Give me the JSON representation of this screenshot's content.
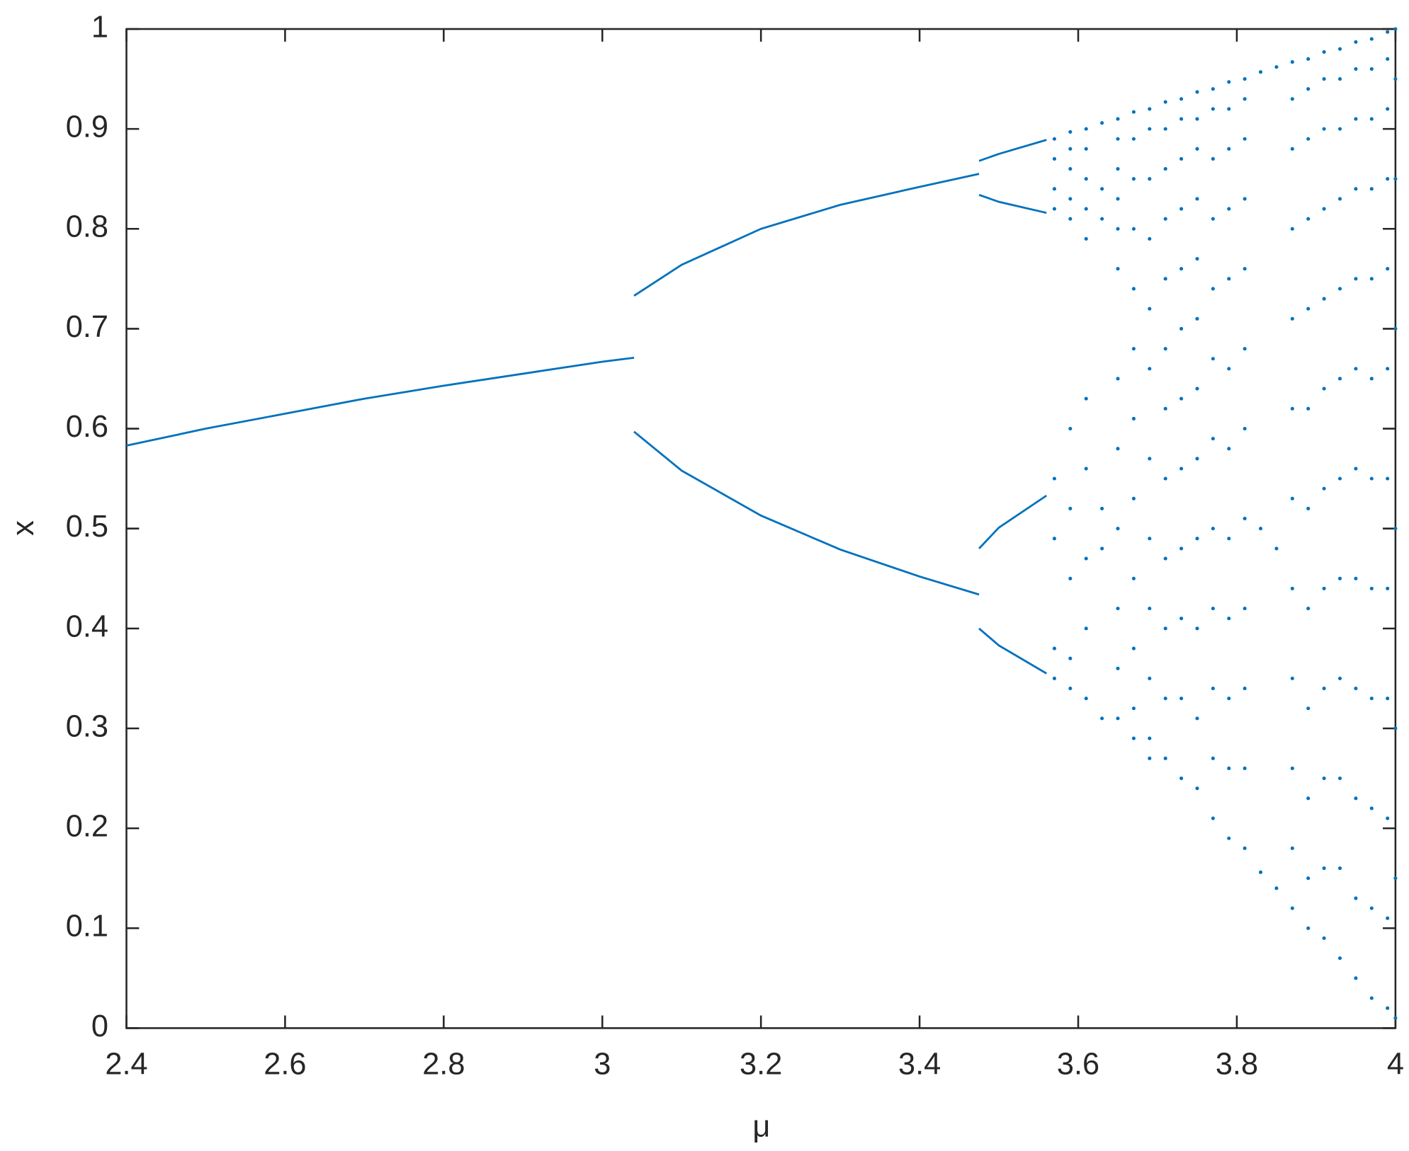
{
  "chart_data": {
    "type": "scatter",
    "xlabel": "μ",
    "ylabel": "x",
    "color": "#0072bd",
    "xlim": [
      2.4,
      4
    ],
    "xticks": [
      2.4,
      2.6,
      2.8,
      3,
      3.2,
      3.4,
      3.6,
      3.8,
      4
    ],
    "ylim": [
      0,
      1
    ],
    "yticks": [
      0,
      0.1,
      0.2,
      0.3,
      0.4,
      0.5,
      0.6,
      0.7,
      0.8,
      0.9,
      1
    ],
    "series": [
      {
        "x": [
          2.4,
          2.5,
          2.6,
          2.7,
          2.8,
          2.9,
          3.0,
          3.04
        ],
        "values": [
          0.583,
          0.6,
          0.615,
          0.63,
          0.643,
          0.655,
          0.667,
          0.671
        ]
      },
      {
        "x": [
          3.04,
          3.1,
          3.2,
          3.3,
          3.4,
          3.475
        ],
        "values": [
          0.733,
          0.764,
          0.8,
          0.824,
          0.842,
          0.855
        ]
      },
      {
        "x": [
          3.04,
          3.1,
          3.2,
          3.3,
          3.4,
          3.475
        ],
        "values": [
          0.597,
          0.558,
          0.513,
          0.479,
          0.452,
          0.434
        ]
      },
      {
        "x": [
          3.475,
          3.5,
          3.56
        ],
        "values": [
          0.868,
          0.875,
          0.889
        ]
      },
      {
        "x": [
          3.475,
          3.5,
          3.56
        ],
        "values": [
          0.834,
          0.827,
          0.816
        ]
      },
      {
        "x": [
          3.475,
          3.5,
          3.56
        ],
        "values": [
          0.48,
          0.501,
          0.533
        ]
      },
      {
        "x": [
          3.475,
          3.5,
          3.56
        ],
        "values": [
          0.4,
          0.383,
          0.355
        ]
      },
      {
        "mu": 3.57,
        "values": [
          0.89,
          0.87,
          0.84,
          0.82,
          0.55,
          0.49,
          0.38,
          0.35
        ]
      },
      {
        "mu": 3.59,
        "values": [
          0.897,
          0.88,
          0.86,
          0.83,
          0.81,
          0.6,
          0.52,
          0.45,
          0.37,
          0.34
        ]
      },
      {
        "mu": 3.61,
        "values": [
          0.9,
          0.88,
          0.85,
          0.82,
          0.79,
          0.63,
          0.56,
          0.47,
          0.4,
          0.33
        ]
      },
      {
        "mu": 3.63,
        "values": [
          0.906,
          0.84,
          0.81,
          0.52,
          0.48,
          0.31
        ]
      },
      {
        "mu": 3.65,
        "values": [
          0.91,
          0.89,
          0.86,
          0.83,
          0.8,
          0.76,
          0.65,
          0.58,
          0.5,
          0.42,
          0.36,
          0.31
        ]
      },
      {
        "mu": 3.67,
        "values": [
          0.917,
          0.89,
          0.85,
          0.8,
          0.74,
          0.68,
          0.61,
          0.53,
          0.45,
          0.38,
          0.32,
          0.29
        ]
      },
      {
        "mu": 3.69,
        "values": [
          0.92,
          0.9,
          0.85,
          0.79,
          0.72,
          0.66,
          0.57,
          0.49,
          0.42,
          0.35,
          0.29,
          0.27
        ]
      },
      {
        "mu": 3.71,
        "values": [
          0.927,
          0.9,
          0.86,
          0.81,
          0.75,
          0.68,
          0.62,
          0.55,
          0.47,
          0.4,
          0.33,
          0.27
        ]
      },
      {
        "mu": 3.73,
        "values": [
          0.93,
          0.91,
          0.87,
          0.82,
          0.76,
          0.7,
          0.63,
          0.56,
          0.48,
          0.41,
          0.33,
          0.25
        ]
      },
      {
        "mu": 3.75,
        "values": [
          0.937,
          0.91,
          0.88,
          0.83,
          0.77,
          0.71,
          0.64,
          0.57,
          0.49,
          0.4,
          0.31,
          0.24
        ]
      },
      {
        "mu": 3.77,
        "values": [
          0.94,
          0.92,
          0.87,
          0.81,
          0.74,
          0.67,
          0.59,
          0.5,
          0.42,
          0.34,
          0.27,
          0.21
        ]
      },
      {
        "mu": 3.79,
        "values": [
          0.947,
          0.92,
          0.88,
          0.82,
          0.75,
          0.66,
          0.58,
          0.49,
          0.41,
          0.33,
          0.26,
          0.19
        ]
      },
      {
        "mu": 3.81,
        "values": [
          0.95,
          0.93,
          0.89,
          0.83,
          0.76,
          0.68,
          0.6,
          0.51,
          0.42,
          0.34,
          0.26,
          0.18
        ]
      },
      {
        "mu": 3.83,
        "values": [
          0.957,
          0.5,
          0.156
        ]
      },
      {
        "mu": 3.85,
        "values": [
          0.962,
          0.48,
          0.14
        ]
      },
      {
        "mu": 3.87,
        "values": [
          0.967,
          0.93,
          0.88,
          0.8,
          0.71,
          0.62,
          0.53,
          0.44,
          0.35,
          0.26,
          0.18,
          0.12
        ]
      },
      {
        "mu": 3.89,
        "values": [
          0.97,
          0.94,
          0.89,
          0.81,
          0.72,
          0.62,
          0.52,
          0.42,
          0.32,
          0.23,
          0.15,
          0.1
        ]
      },
      {
        "mu": 3.91,
        "values": [
          0.977,
          0.95,
          0.9,
          0.82,
          0.73,
          0.64,
          0.54,
          0.44,
          0.34,
          0.25,
          0.16,
          0.09
        ]
      },
      {
        "mu": 3.93,
        "values": [
          0.98,
          0.95,
          0.9,
          0.83,
          0.74,
          0.65,
          0.55,
          0.45,
          0.35,
          0.25,
          0.16,
          0.07
        ]
      },
      {
        "mu": 3.95,
        "values": [
          0.987,
          0.96,
          0.91,
          0.84,
          0.75,
          0.66,
          0.56,
          0.45,
          0.34,
          0.23,
          0.13,
          0.05
        ]
      },
      {
        "mu": 3.97,
        "values": [
          0.99,
          0.96,
          0.91,
          0.84,
          0.75,
          0.65,
          0.55,
          0.44,
          0.33,
          0.22,
          0.12,
          0.03
        ]
      },
      {
        "mu": 3.99,
        "values": [
          0.997,
          0.97,
          0.92,
          0.85,
          0.76,
          0.66,
          0.55,
          0.44,
          0.33,
          0.21,
          0.11,
          0.02
        ]
      },
      {
        "mu": 4.0,
        "values": [
          1.0,
          0.95,
          0.85,
          0.7,
          0.5,
          0.3,
          0.15,
          0.01
        ]
      }
    ]
  }
}
